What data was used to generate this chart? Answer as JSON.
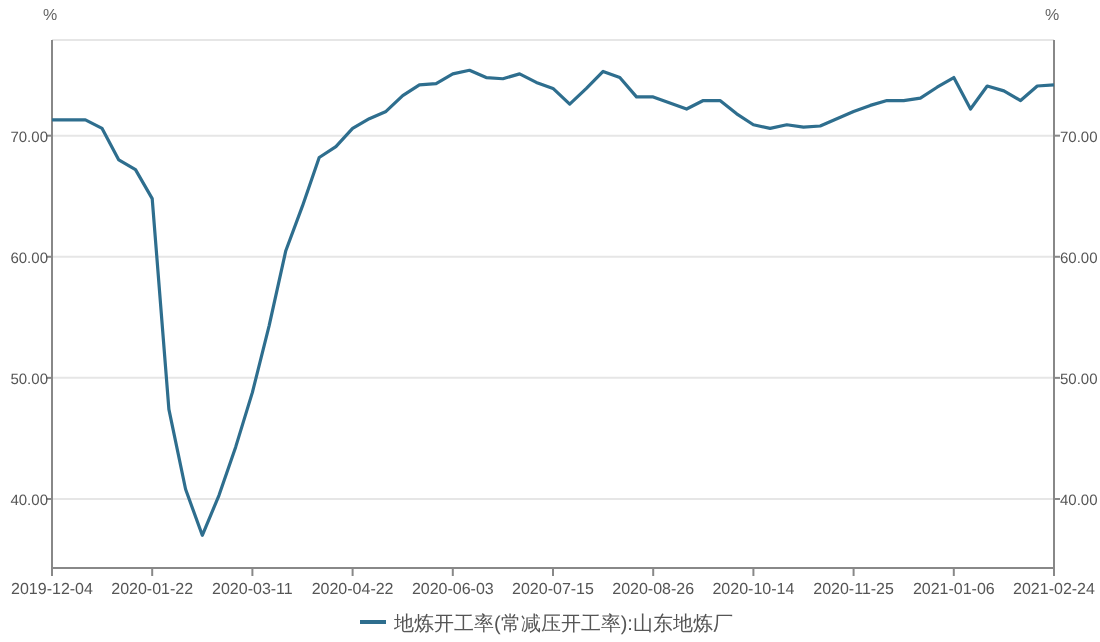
{
  "chart_data": {
    "type": "line",
    "ylabel": "%",
    "y2label": "%",
    "categories": [
      "2019-12-04",
      null,
      null,
      null,
      null,
      null,
      "2020-01-22",
      null,
      null,
      null,
      null,
      null,
      "2020-03-11",
      null,
      null,
      null,
      null,
      null,
      "2020-04-22",
      null,
      null,
      null,
      null,
      null,
      "2020-06-03",
      null,
      null,
      null,
      null,
      null,
      "2020-07-15",
      null,
      null,
      null,
      null,
      null,
      "2020-08-26",
      null,
      null,
      null,
      null,
      null,
      "2020-10-14",
      null,
      null,
      null,
      null,
      null,
      "2020-11-25",
      null,
      null,
      null,
      null,
      null,
      "2021-01-06",
      null,
      null,
      null,
      null,
      null,
      "2021-02-24"
    ],
    "series": [
      {
        "name": "地炼开工率(常减压开工率):山东地炼厂",
        "color": "#2e6e8e",
        "values": [
          71.3,
          71.3,
          71.3,
          70.6,
          68.0,
          67.2,
          64.8,
          47.4,
          40.8,
          37.0,
          40.3,
          44.3,
          48.8,
          54.3,
          60.5,
          64.2,
          68.2,
          69.1,
          70.6,
          71.4,
          72.0,
          73.3,
          74.2,
          74.3,
          75.1,
          75.4,
          74.8,
          74.7,
          75.1,
          74.4,
          73.9,
          72.6,
          73.9,
          75.3,
          74.8,
          73.2,
          73.2,
          72.7,
          72.2,
          72.9,
          72.9,
          71.8,
          70.9,
          70.6,
          70.9,
          70.7,
          70.8,
          71.4,
          72.0,
          72.5,
          72.9,
          72.9,
          73.1,
          74.0,
          74.8,
          72.2,
          74.1,
          73.7,
          72.9,
          74.1,
          74.2
        ]
      }
    ],
    "ylim": [
      34.3,
      77.9
    ],
    "yticks": [
      {
        "value": 40,
        "label": "40.00"
      },
      {
        "value": 50,
        "label": "50.00"
      },
      {
        "value": 60,
        "label": "60.00"
      },
      {
        "value": 70,
        "label": "70.00"
      }
    ],
    "y2lim": [
      34.3,
      77.9
    ],
    "y2ticks": [
      {
        "value": 40,
        "label": "40.00"
      },
      {
        "value": 50,
        "label": "50.00"
      },
      {
        "value": 60,
        "label": "60.00"
      },
      {
        "value": 70,
        "label": "70.00"
      }
    ],
    "grid": "y",
    "legend": "bottom",
    "marker": "none",
    "line_style": "solid"
  }
}
